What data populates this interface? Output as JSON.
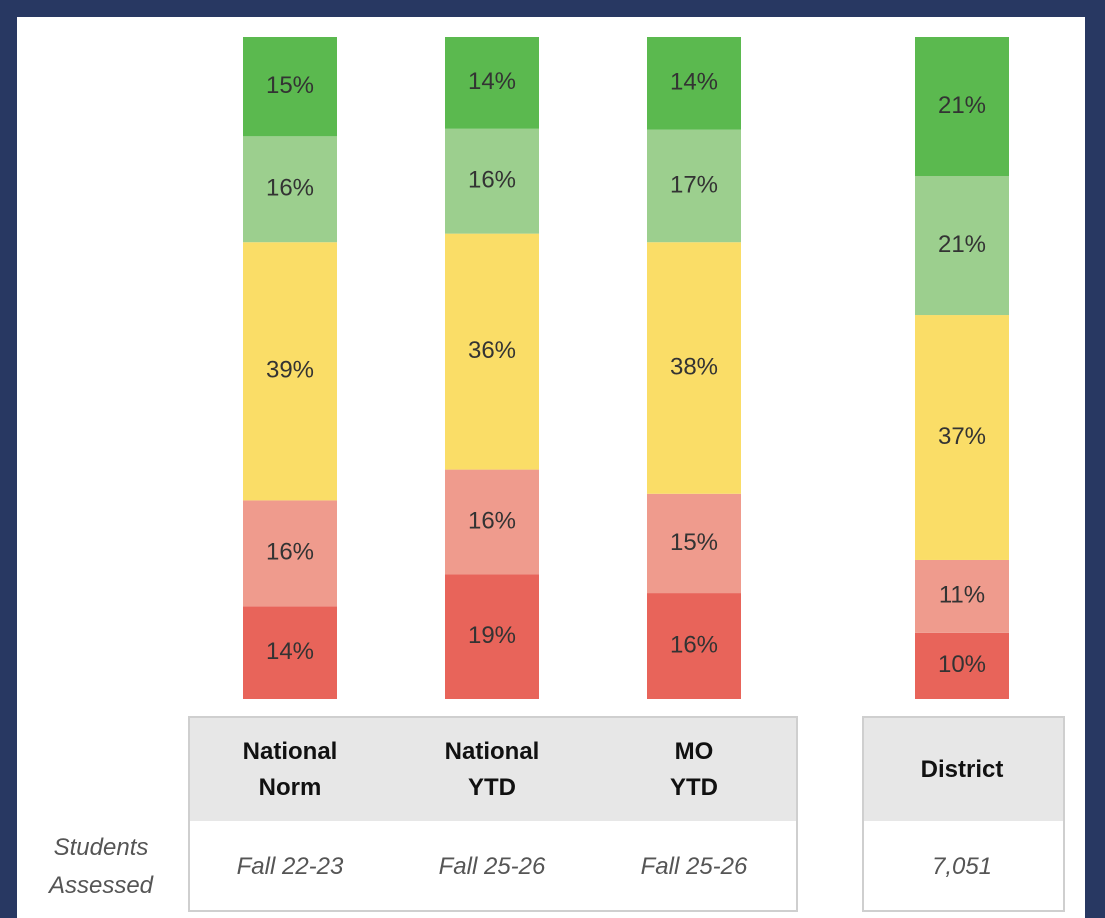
{
  "chart_data": {
    "type": "stacked_bar",
    "categories": [
      "National Norm",
      "National YTD",
      "MO YTD",
      "District"
    ],
    "series": [
      {
        "color": "#e8645a",
        "values": [
          14,
          19,
          16,
          10
        ],
        "value_labels": [
          "14%",
          "19%",
          "16%",
          "10%"
        ]
      },
      {
        "color": "#ef9b8d",
        "values": [
          16,
          16,
          15,
          11
        ],
        "value_labels": [
          "16%",
          "16%",
          "15%",
          "11%"
        ]
      },
      {
        "color": "#fadd67",
        "values": [
          39,
          36,
          38,
          37
        ],
        "value_labels": [
          "39%",
          "36%",
          "38%",
          "37%"
        ]
      },
      {
        "color": "#9ccf8e",
        "values": [
          16,
          16,
          17,
          21
        ],
        "value_labels": [
          "16%",
          "16%",
          "17%",
          "21%"
        ]
      },
      {
        "color": "#5bb94f",
        "values": [
          15,
          14,
          14,
          21
        ],
        "value_labels": [
          "15%",
          "14%",
          "14%",
          "21%"
        ]
      }
    ],
    "row_label": "Students Assessed",
    "students_assessed": [
      "Fall 22-23",
      "Fall 25-26",
      "Fall 25-26",
      "7,051"
    ]
  }
}
